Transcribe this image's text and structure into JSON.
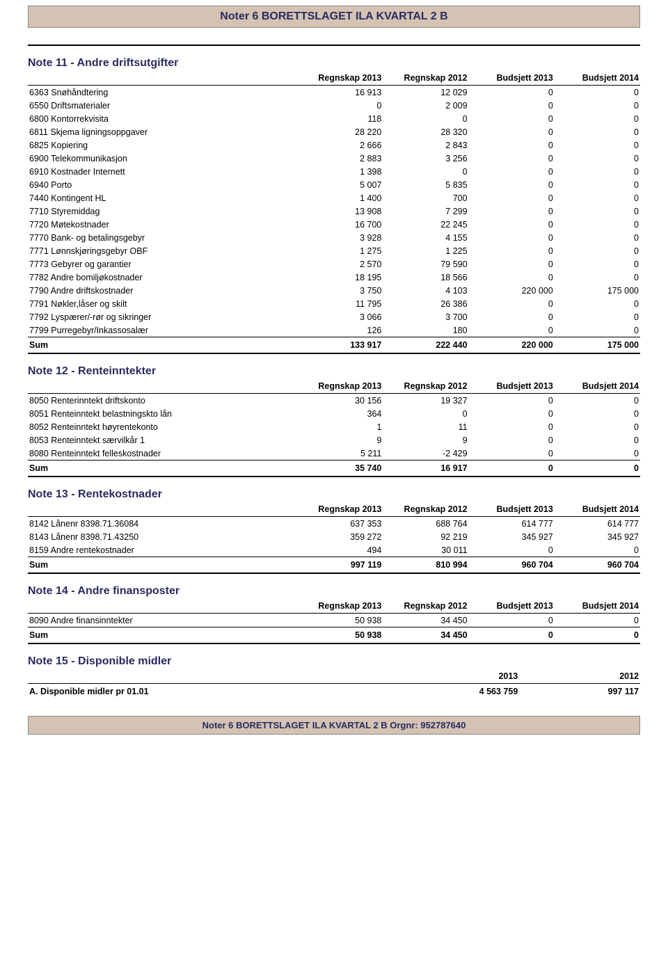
{
  "page": {
    "title": "Noter 6 BORETTSLAGET ILA KVARTAL 2 B",
    "footer": "Noter 6 BORETTSLAGET ILA KVARTAL 2 B Orgnr: 952787640"
  },
  "cols": {
    "r2013": "Regnskap 2013",
    "r2012": "Regnskap 2012",
    "b2013": "Budsjett 2013",
    "b2014": "Budsjett 2014",
    "y2013": "2013",
    "y2012": "2012",
    "sum": "Sum"
  },
  "note11": {
    "title": "Note 11 - Andre driftsutgifter",
    "rows": [
      {
        "code": "6363",
        "label": "Snøhåndtering",
        "r13": "16 913",
        "r12": "12 029",
        "b13": "0",
        "b14": "0"
      },
      {
        "code": "6550",
        "label": "Driftsmaterialer",
        "r13": "0",
        "r12": "2 009",
        "b13": "0",
        "b14": "0"
      },
      {
        "code": "6800",
        "label": "Kontorrekvisita",
        "r13": "118",
        "r12": "0",
        "b13": "0",
        "b14": "0"
      },
      {
        "code": "6811",
        "label": "Skjema ligningsoppgaver",
        "r13": "28 220",
        "r12": "28 320",
        "b13": "0",
        "b14": "0"
      },
      {
        "code": "6825",
        "label": "Kopiering",
        "r13": "2 666",
        "r12": "2 843",
        "b13": "0",
        "b14": "0"
      },
      {
        "code": "6900",
        "label": "Telekommunikasjon",
        "r13": "2 883",
        "r12": "3 256",
        "b13": "0",
        "b14": "0"
      },
      {
        "code": "6910",
        "label": "Kostnader Internett",
        "r13": "1 398",
        "r12": "0",
        "b13": "0",
        "b14": "0"
      },
      {
        "code": "6940",
        "label": "Porto",
        "r13": "5 007",
        "r12": "5 835",
        "b13": "0",
        "b14": "0"
      },
      {
        "code": "7440",
        "label": "Kontingent HL",
        "r13": "1 400",
        "r12": "700",
        "b13": "0",
        "b14": "0"
      },
      {
        "code": "7710",
        "label": "Styremiddag",
        "r13": "13 908",
        "r12": "7 299",
        "b13": "0",
        "b14": "0"
      },
      {
        "code": "7720",
        "label": "Møtekostnader",
        "r13": "16 700",
        "r12": "22 245",
        "b13": "0",
        "b14": "0"
      },
      {
        "code": "7770",
        "label": "Bank- og betalingsgebyr",
        "r13": "3 928",
        "r12": "4 155",
        "b13": "0",
        "b14": "0"
      },
      {
        "code": "7771",
        "label": "Lønnskjøringsgebyr OBF",
        "r13": "1 275",
        "r12": "1 225",
        "b13": "0",
        "b14": "0"
      },
      {
        "code": "7773",
        "label": "Gebyrer og garantier",
        "r13": "2 570",
        "r12": "79 590",
        "b13": "0",
        "b14": "0"
      },
      {
        "code": "7782",
        "label": "Andre bomiljøkostnader",
        "r13": "18 195",
        "r12": "18 566",
        "b13": "0",
        "b14": "0"
      },
      {
        "code": "7790",
        "label": "Andre driftskostnader",
        "r13": "3 750",
        "r12": "4 103",
        "b13": "220 000",
        "b14": "175 000"
      },
      {
        "code": "7791",
        "label": "Nøkler,låser og skilt",
        "r13": "11 795",
        "r12": "26 386",
        "b13": "0",
        "b14": "0"
      },
      {
        "code": "7792",
        "label": "Lyspærer/-rør og sikringer",
        "r13": "3 066",
        "r12": "3 700",
        "b13": "0",
        "b14": "0"
      },
      {
        "code": "7799",
        "label": "Purregebyr/Inkassosalær",
        "r13": "126",
        "r12": "180",
        "b13": "0",
        "b14": "0"
      }
    ],
    "sum": {
      "r13": "133 917",
      "r12": "222 440",
      "b13": "220 000",
      "b14": "175 000"
    }
  },
  "note12": {
    "title": "Note 12 - Renteinntekter",
    "rows": [
      {
        "code": "8050",
        "label": "Renterinntekt driftskonto",
        "r13": "30 156",
        "r12": "19 327",
        "b13": "0",
        "b14": "0"
      },
      {
        "code": "8051",
        "label": "Renteinntekt belastningskto lån",
        "r13": "364",
        "r12": "0",
        "b13": "0",
        "b14": "0"
      },
      {
        "code": "8052",
        "label": "Renteinntekt høyrentekonto",
        "r13": "1",
        "r12": "11",
        "b13": "0",
        "b14": "0"
      },
      {
        "code": "8053",
        "label": "Renteinntekt særvilkår 1",
        "r13": "9",
        "r12": "9",
        "b13": "0",
        "b14": "0"
      },
      {
        "code": "8080",
        "label": "Renteinntekt felleskostnader",
        "r13": "5 211",
        "r12": "-2 429",
        "b13": "0",
        "b14": "0"
      }
    ],
    "sum": {
      "r13": "35 740",
      "r12": "16 917",
      "b13": "0",
      "b14": "0"
    }
  },
  "note13": {
    "title": "Note 13 - Rentekostnader",
    "rows": [
      {
        "code": "8142",
        "label": "Lånenr 8398.71.36084",
        "r13": "637 353",
        "r12": "688 764",
        "b13": "614 777",
        "b14": "614 777"
      },
      {
        "code": "8143",
        "label": "Lånenr 8398.71.43250",
        "r13": "359 272",
        "r12": "92 219",
        "b13": "345 927",
        "b14": "345 927"
      },
      {
        "code": "8159",
        "label": "Andre rentekostnader",
        "r13": "494",
        "r12": "30 011",
        "b13": "0",
        "b14": "0"
      }
    ],
    "sum": {
      "r13": "997 119",
      "r12": "810 994",
      "b13": "960 704",
      "b14": "960 704"
    }
  },
  "note14": {
    "title": "Note 14 - Andre finansposter",
    "rows": [
      {
        "code": "8090",
        "label": "Andre finansinntekter",
        "r13": "50 938",
        "r12": "34 450",
        "b13": "0",
        "b14": "0"
      }
    ],
    "sum": {
      "r13": "50 938",
      "r12": "34 450",
      "b13": "0",
      "b14": "0"
    }
  },
  "note15": {
    "title": "Note 15 - Disponible midler",
    "row": {
      "label": "A. Disponible midler pr 01.01",
      "y13": "4 563 759",
      "y12": "997 117"
    }
  },
  "style": {
    "header_bg": "#d4c3b2",
    "header_text": "#2a2a60",
    "body_font_size": 12.5,
    "title_font_size": 16
  }
}
